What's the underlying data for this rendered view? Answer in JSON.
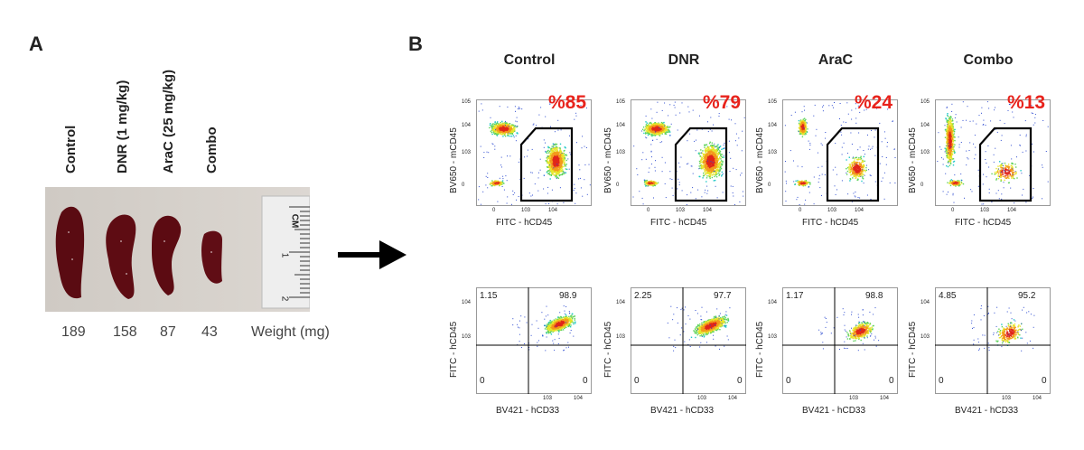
{
  "panel_a": {
    "letter": "A",
    "groups": [
      "Control",
      "DNR (1 mg/kg)",
      "AraC (25 mg/kg)",
      "Combo"
    ],
    "weights": [
      "189",
      "158",
      "87",
      "43"
    ],
    "weight_label": "Weight (mg)",
    "ruler_label": "CM",
    "ruler_numbers": [
      "1",
      "2"
    ]
  },
  "panel_b": {
    "letter": "B",
    "columns": [
      "Control",
      "DNR",
      "AraC",
      "Combo"
    ],
    "top_row": {
      "y_axis": "BV650 - mCD45",
      "x_axis": "FITC - hCD45",
      "percentages": [
        "%85",
        "%79",
        "%24",
        "%13"
      ],
      "y_ticks": [
        "10^5",
        "10^4",
        "10^3",
        "0"
      ],
      "x_ticks": [
        "0",
        "10^3",
        "10^4"
      ]
    },
    "bottom_row": {
      "y_axis": "FITC - hCD45",
      "x_axis": "BV421 - hCD33",
      "quadrants": [
        {
          "ul": "1.15",
          "ur": "98.9",
          "ll": "0",
          "lr": "0"
        },
        {
          "ul": "2.25",
          "ur": "97.7",
          "ll": "0",
          "lr": "0"
        },
        {
          "ul": "1.17",
          "ur": "98.8",
          "ll": "0",
          "lr": "0"
        },
        {
          "ul": "4.85",
          "ur": "95.2",
          "ll": "0",
          "lr": "0"
        }
      ],
      "y_ticks": [
        "10^4",
        "10^3"
      ],
      "x_ticks": [
        "10^3",
        "10^4"
      ]
    }
  },
  "colors": {
    "highlight": "#e8231c",
    "tissue": "#5a0b12",
    "arrow": "#000000"
  }
}
